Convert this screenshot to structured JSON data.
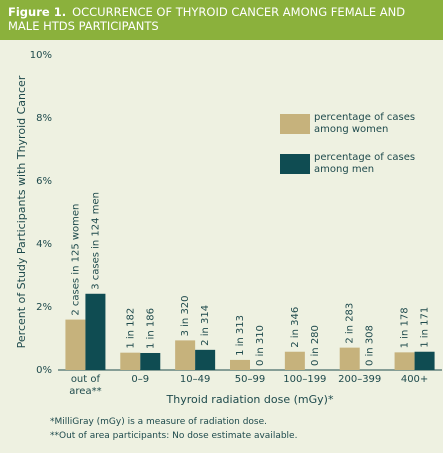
{
  "chart_data": {
    "type": "bar",
    "figure_label": "Figure 1.",
    "title": "OCCURRENCE OF THYROID CANCER AMONG FEMALE AND MALE HTDS PARTICIPANTS",
    "ylabel": "Percent of Study Participants with Thyroid Cancer",
    "xlabel": "Thyroid radiation dose (mGy)*",
    "categories": [
      "out of area**",
      "0–9",
      "10–49",
      "50–99",
      "100–199",
      "200–399",
      "400+"
    ],
    "series": [
      {
        "name": "percentage of cases among women",
        "color": "#c6b27c",
        "values": [
          1.6,
          0.55,
          0.94,
          0.32,
          0.58,
          0.71,
          0.56
        ],
        "value_labels": [
          "2 cases in 125 women",
          "1 in 182",
          "3 in 320",
          "1 in 313",
          "2 in 346",
          "2 in 283",
          "1 in 178"
        ]
      },
      {
        "name": "percentage of cases among men",
        "color": "#0f4c52",
        "values": [
          2.42,
          0.54,
          0.64,
          0,
          0,
          0,
          0.58
        ],
        "value_labels": [
          "3 cases in 124 men",
          "1 in 186",
          "2 in 314",
          "0 in 310",
          "0 in 280",
          "0 in 308",
          "1 in 171"
        ]
      }
    ],
    "ylim": [
      0,
      10
    ],
    "yticks": [
      {
        "value": 0,
        "label": "0%"
      },
      {
        "value": 2,
        "label": "2%"
      },
      {
        "value": 4,
        "label": "4%"
      },
      {
        "value": 6,
        "label": "6%"
      },
      {
        "value": 8,
        "label": "8%"
      },
      {
        "value": 10,
        "label": "10%"
      }
    ],
    "grid": false,
    "legend_position": "upper right",
    "notes": [
      "*MilliGray (mGy) is a measure of radiation dose.",
      "**Out of area participants: No dose estimate available."
    ]
  }
}
